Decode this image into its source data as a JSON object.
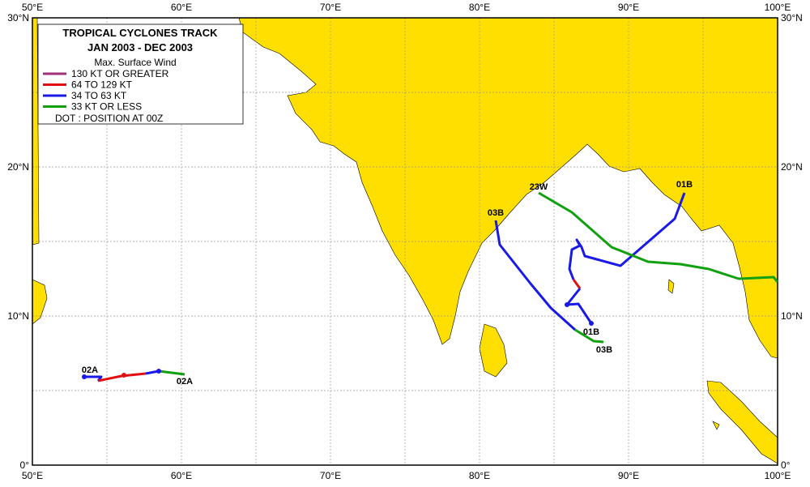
{
  "legend": {
    "title_line1": "TROPICAL  CYCLONES TRACK",
    "title_line2": "JAN 2003  -  DEC 2003",
    "subtitle": "Max. Surface Wind",
    "entries": [
      "130 KT OR GREATER",
      "64 TO 129 KT",
      "34 TO 63 KT",
      "33 KT OR LESS"
    ],
    "note": "DOT : POSITION AT 00Z"
  },
  "axes": {
    "longitudes": [
      "50°E",
      "60°E",
      "70°E",
      "80°E",
      "90°E",
      "100°E"
    ],
    "latitudes": [
      "0°",
      "10°N",
      "20°N",
      "30°N"
    ]
  },
  "storms": {
    "s01B_start": "01B",
    "s01B_end": "01B",
    "s03B_start": "03B",
    "s03B_end": "03B",
    "s23W": "23W",
    "s02A_start": "02A",
    "s02A_end": "02A"
  }
}
